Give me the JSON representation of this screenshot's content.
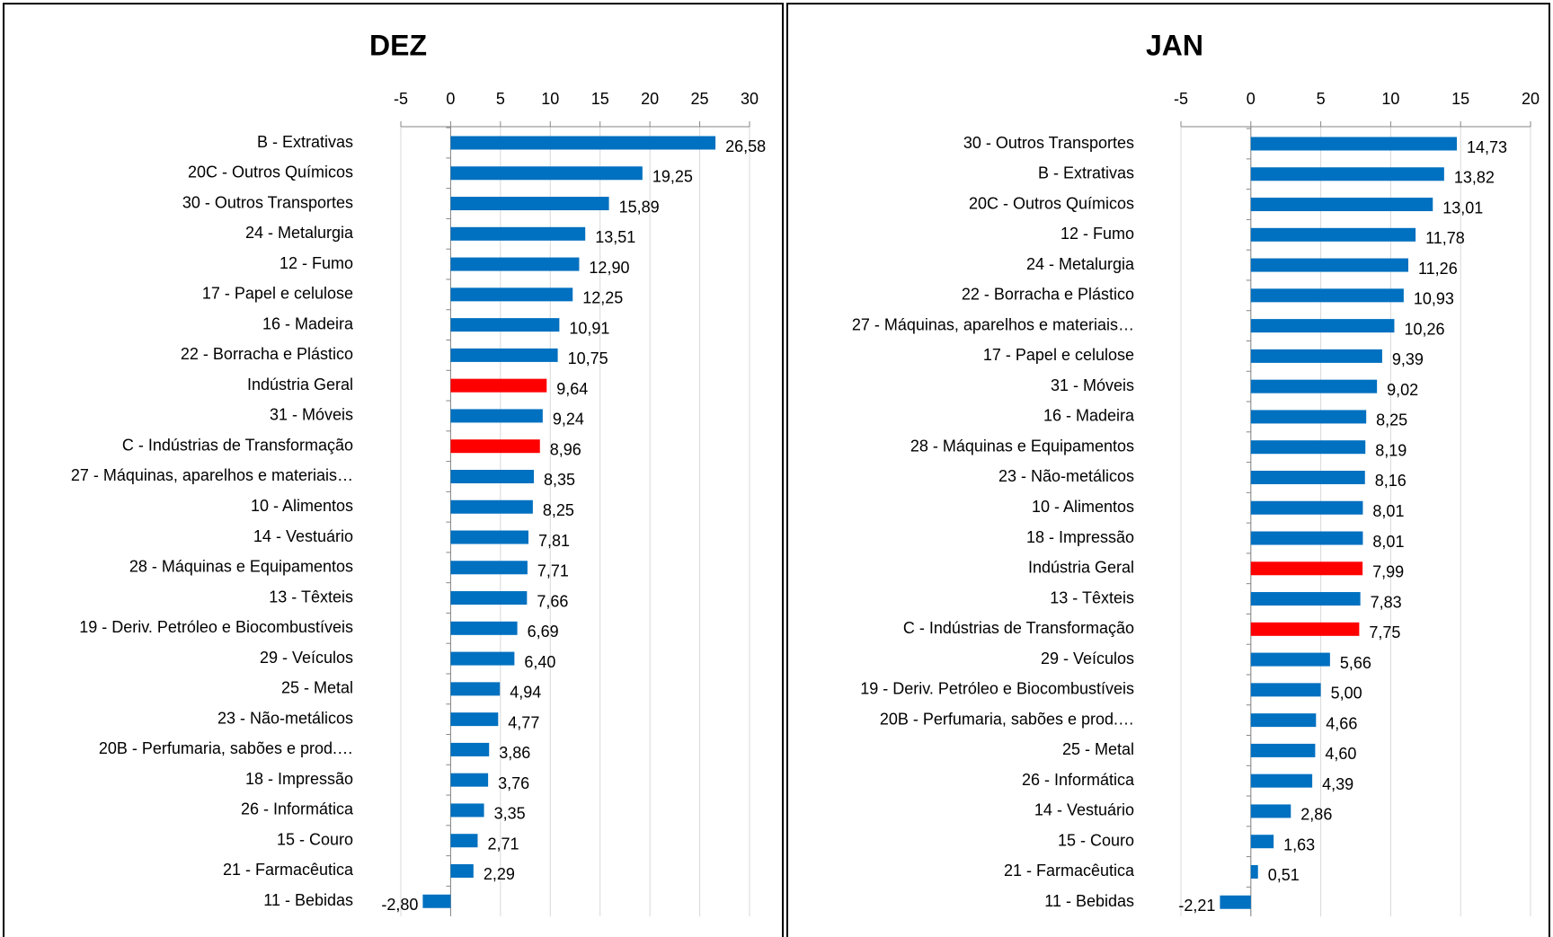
{
  "chart_data": [
    {
      "type": "bar",
      "orientation": "horizontal",
      "title": "DEZ",
      "categories": [
        "B - Extrativas",
        "20C - Outros Químicos",
        "30 - Outros Transportes",
        "24 - Metalurgia",
        "12 - Fumo",
        "17 - Papel e celulose",
        "16 - Madeira",
        "22 - Borracha e Plástico",
        "Indústria Geral",
        "31 - Móveis",
        "C - Indústrias de Transformação",
        "27 - Máquinas, aparelhos e materiais…",
        "10 - Alimentos",
        "14 - Vestuário",
        "28 - Máquinas e Equipamentos",
        "13 - Têxteis",
        "19 - Deriv. Petróleo e Biocombustíveis",
        "29 - Veículos",
        "25 - Metal",
        "23 - Não-metálicos",
        "20B - Perfumaria, sabões e prod.…",
        "18 - Impressão",
        "26 - Informática",
        "15 - Couro",
        "21 - Farmacêutica",
        "11 - Bebidas"
      ],
      "values": [
        26.58,
        19.25,
        15.89,
        13.51,
        12.9,
        12.25,
        10.91,
        10.75,
        9.64,
        9.24,
        8.96,
        8.35,
        8.25,
        7.81,
        7.71,
        7.66,
        6.69,
        6.4,
        4.94,
        4.77,
        3.86,
        3.76,
        3.35,
        2.71,
        2.29,
        -2.8
      ],
      "value_labels": [
        "26,58",
        "19,25",
        "15,89",
        "13,51",
        "12,90",
        "12,25",
        "10,91",
        "10,75",
        "9,64",
        "9,24",
        "8,96",
        "8,35",
        "8,25",
        "7,81",
        "7,71",
        "7,66",
        "6,69",
        "6,40",
        "4,94",
        "4,77",
        "3,86",
        "3,76",
        "3,35",
        "2,71",
        "2,29",
        "-2,80"
      ],
      "colors": [
        "#0070c0",
        "#0070c0",
        "#0070c0",
        "#0070c0",
        "#0070c0",
        "#0070c0",
        "#0070c0",
        "#0070c0",
        "#ff0000",
        "#0070c0",
        "#ff0000",
        "#0070c0",
        "#0070c0",
        "#0070c0",
        "#0070c0",
        "#0070c0",
        "#0070c0",
        "#0070c0",
        "#0070c0",
        "#0070c0",
        "#0070c0",
        "#0070c0",
        "#0070c0",
        "#0070c0",
        "#0070c0",
        "#0070c0"
      ],
      "xlim": [
        -5,
        30
      ],
      "xticks": [
        -5,
        0,
        5,
        10,
        15,
        20,
        25,
        30
      ],
      "grid": true
    },
    {
      "type": "bar",
      "orientation": "horizontal",
      "title": "JAN",
      "categories": [
        "30 - Outros Transportes",
        "B - Extrativas",
        "20C - Outros Químicos",
        "12 - Fumo",
        "24 - Metalurgia",
        "22 - Borracha e Plástico",
        "27 - Máquinas, aparelhos e materiais…",
        "17 - Papel e celulose",
        "31 - Móveis",
        "16 - Madeira",
        "28 - Máquinas e Equipamentos",
        "23 - Não-metálicos",
        "10 - Alimentos",
        "18 - Impressão",
        "Indústria Geral",
        "13 - Têxteis",
        "C - Indústrias de Transformação",
        "29 - Veículos",
        "19 - Deriv. Petróleo e Biocombustíveis",
        "20B - Perfumaria, sabões e prod.…",
        "25 - Metal",
        "26 - Informática",
        "14 - Vestuário",
        "15 - Couro",
        "21 - Farmacêutica",
        "11 - Bebidas"
      ],
      "values": [
        14.73,
        13.82,
        13.01,
        11.78,
        11.26,
        10.93,
        10.26,
        9.39,
        9.02,
        8.25,
        8.19,
        8.16,
        8.01,
        8.01,
        7.99,
        7.83,
        7.75,
        5.66,
        5.0,
        4.66,
        4.6,
        4.39,
        2.86,
        1.63,
        0.51,
        -2.21
      ],
      "value_labels": [
        "14,73",
        "13,82",
        "13,01",
        "11,78",
        "11,26",
        "10,93",
        "10,26",
        "9,39",
        "9,02",
        "8,25",
        "8,19",
        "8,16",
        "8,01",
        "8,01",
        "7,99",
        "7,83",
        "7,75",
        "5,66",
        "5,00",
        "4,66",
        "4,60",
        "4,39",
        "2,86",
        "1,63",
        "0,51",
        "-2,21"
      ],
      "colors": [
        "#0070c0",
        "#0070c0",
        "#0070c0",
        "#0070c0",
        "#0070c0",
        "#0070c0",
        "#0070c0",
        "#0070c0",
        "#0070c0",
        "#0070c0",
        "#0070c0",
        "#0070c0",
        "#0070c0",
        "#0070c0",
        "#ff0000",
        "#0070c0",
        "#ff0000",
        "#0070c0",
        "#0070c0",
        "#0070c0",
        "#0070c0",
        "#0070c0",
        "#0070c0",
        "#0070c0",
        "#0070c0",
        "#0070c0"
      ],
      "xlim": [
        -5,
        20
      ],
      "xticks": [
        -5,
        0,
        5,
        10,
        15,
        20
      ],
      "grid": true
    }
  ]
}
